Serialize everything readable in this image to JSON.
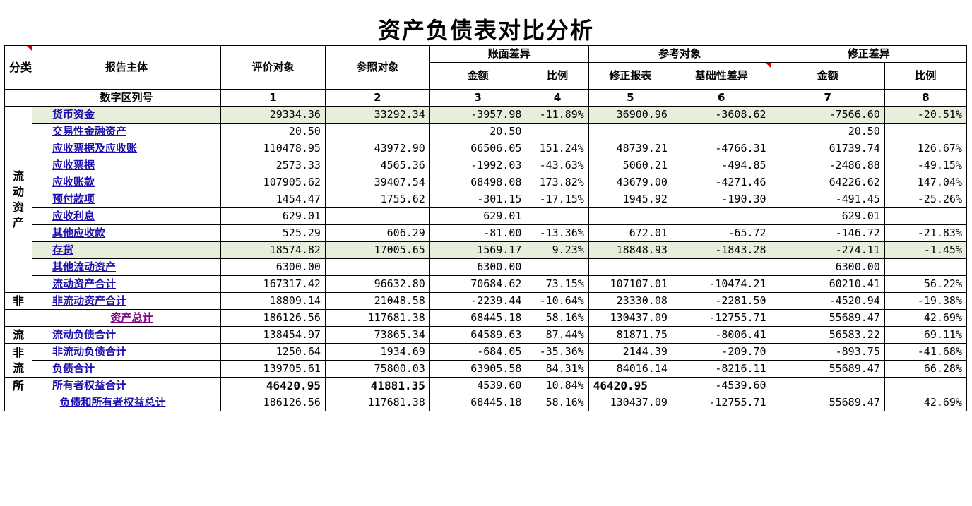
{
  "title": "资产负债表对比分析",
  "headers": {
    "category": "分类",
    "subject": "报告主体",
    "eval": "评价对象",
    "ref": "参照对象",
    "book_diff": "账面差异",
    "amount": "金额",
    "ratio": "比例",
    "ref_obj": "参考对象",
    "adj_report": "修正报表",
    "base_diff": "基础性差异",
    "adj_diff": "修正差异",
    "amount2": "金额",
    "ratio2": "比例",
    "col_label": "数字区列号",
    "cols": [
      "1",
      "2",
      "3",
      "4",
      "5",
      "6",
      "7",
      "8"
    ]
  },
  "categories": {
    "current_assets": "流动资产",
    "non": "非",
    "liab_current": "流",
    "liab_noncurrent": "非流",
    "owner": "所"
  },
  "colors": {
    "link": "#1a0dab",
    "link_visited": "#800080",
    "highlight": "#e8eedc",
    "marker": "#d00000"
  },
  "rows": [
    {
      "name": "货币资金",
      "v": [
        "29334.36",
        "33292.34",
        "-3957.98",
        "-11.89%",
        "36900.96",
        "-3608.62",
        "-7566.60",
        "-20.51%"
      ]
    },
    {
      "name": "交易性金融资产",
      "v": [
        "20.50",
        "",
        "20.50",
        "",
        "",
        "",
        "20.50",
        ""
      ]
    },
    {
      "name": "应收票据及应收账",
      "v": [
        "110478.95",
        "43972.90",
        "66506.05",
        "151.24%",
        "48739.21",
        "-4766.31",
        "61739.74",
        "126.67%"
      ]
    },
    {
      "name": "应收票据",
      "v": [
        "2573.33",
        "4565.36",
        "-1992.03",
        "-43.63%",
        "5060.21",
        "-494.85",
        "-2486.88",
        "-49.15%"
      ]
    },
    {
      "name": "应收账款",
      "v": [
        "107905.62",
        "39407.54",
        "68498.08",
        "173.82%",
        "43679.00",
        "-4271.46",
        "64226.62",
        "147.04%"
      ]
    },
    {
      "name": "预付款项",
      "v": [
        "1454.47",
        "1755.62",
        "-301.15",
        "-17.15%",
        "1945.92",
        "-190.30",
        "-491.45",
        "-25.26%"
      ]
    },
    {
      "name": "应收利息",
      "v": [
        "629.01",
        "",
        "629.01",
        "",
        "",
        "",
        "629.01",
        ""
      ]
    },
    {
      "name": "其他应收款",
      "v": [
        "525.29",
        "606.29",
        "-81.00",
        "-13.36%",
        "672.01",
        "-65.72",
        "-146.72",
        "-21.83%"
      ]
    },
    {
      "name": "存货",
      "v": [
        "18574.82",
        "17005.65",
        "1569.17",
        "9.23%",
        "18848.93",
        "-1843.28",
        "-274.11",
        "-1.45%"
      ]
    },
    {
      "name": "其他流动资产",
      "v": [
        "6300.00",
        "",
        "6300.00",
        "",
        "",
        "",
        "6300.00",
        ""
      ]
    },
    {
      "name": "流动资产合计",
      "v": [
        "167317.42",
        "96632.80",
        "70684.62",
        "73.15%",
        "107107.01",
        "-10474.21",
        "60210.41",
        "56.22%"
      ]
    },
    {
      "name": "非流动资产合计",
      "v": [
        "18809.14",
        "21048.58",
        "-2239.44",
        "-10.64%",
        "23330.08",
        "-2281.50",
        "-4520.94",
        "-19.38%"
      ]
    },
    {
      "name": "资产总计",
      "v": [
        "186126.56",
        "117681.38",
        "68445.18",
        "58.16%",
        "130437.09",
        "-12755.71",
        "55689.47",
        "42.69%"
      ]
    },
    {
      "name": "流动负债合计",
      "v": [
        "138454.97",
        "73865.34",
        "64589.63",
        "87.44%",
        "81871.75",
        "-8006.41",
        "56583.22",
        "69.11%"
      ]
    },
    {
      "name": "非流动负债合计",
      "v": [
        "1250.64",
        "1934.69",
        "-684.05",
        "-35.36%",
        "2144.39",
        "-209.70",
        "-893.75",
        "-41.68%"
      ]
    },
    {
      "name": "负债合计",
      "v": [
        "139705.61",
        "75800.03",
        "63905.58",
        "84.31%",
        "84016.14",
        "-8216.11",
        "55689.47",
        "66.28%"
      ]
    },
    {
      "name": "所有者权益合计",
      "v": [
        "46420.95",
        "41881.35",
        "4539.60",
        "10.84%",
        "46420.95",
        "-4539.60",
        "",
        ""
      ]
    },
    {
      "name": "负债和所有者权益总计",
      "v": [
        "186126.56",
        "117681.38",
        "68445.18",
        "58.16%",
        "130437.09",
        "-12755.71",
        "55689.47",
        "42.69%"
      ]
    }
  ]
}
